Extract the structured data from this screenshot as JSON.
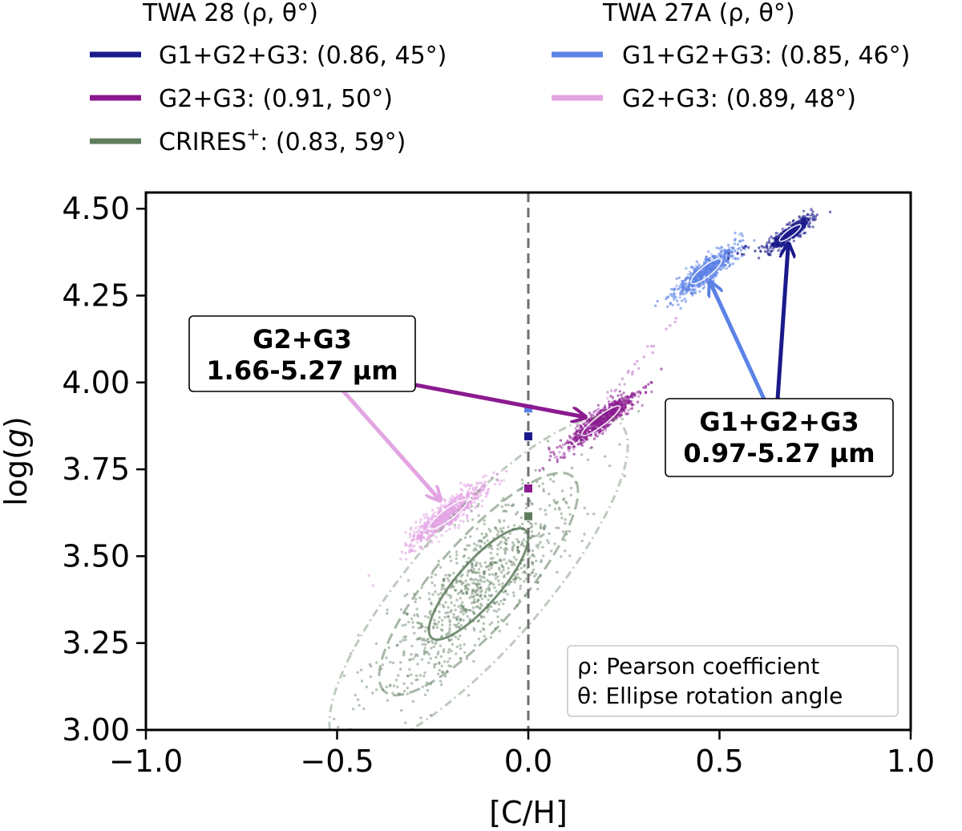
{
  "chart_data": {
    "type": "scatter",
    "xlabel": "[C/H]",
    "ylabel": "log(g)",
    "xlim": [
      -1.0,
      1.0
    ],
    "ylim": [
      3.0,
      4.55
    ],
    "x_ticks": [
      -1.0,
      -0.5,
      0.0,
      0.5,
      1.0
    ],
    "x_tick_labels": [
      "−1.0",
      "−0.5",
      "0.0",
      "0.5",
      "1.0"
    ],
    "y_ticks": [
      3.0,
      3.25,
      3.5,
      3.75,
      4.0,
      4.25,
      4.5
    ],
    "y_tick_labels": [
      "3.00",
      "3.25",
      "3.50",
      "3.75",
      "4.00",
      "4.25",
      "4.50"
    ],
    "reference_line": {
      "x": 0.0,
      "style": "dashed",
      "color": "#6f6f6f"
    },
    "legend": {
      "placement": "above plot",
      "columns": [
        {
          "title": "TWA 28 (ρ, θ°)",
          "entries": [
            {
              "name": "G1+G2+G3",
              "label": "G1+G2+G3: (0.86, 45°)",
              "color": "#1a1a8c"
            },
            {
              "name": "G2+G3",
              "label": "G2+G3: (0.91, 50°)",
              "color": "#8b1a8f"
            },
            {
              "name": "CRIRES+",
              "label_main": "CRIRES",
              "label_sup": "+",
              "label_rest": ": (0.83, 59°)",
              "color": "#5e7d5e"
            }
          ]
        },
        {
          "title": "TWA 27A (ρ, θ°)",
          "entries": [
            {
              "name": "G1+G2+G3",
              "label": "G1+G2+G3: (0.85, 46°)",
              "color": "#5b82e6"
            },
            {
              "name": "G2+G3",
              "label": "G2+G3: (0.89, 48°)",
              "color": "#e2a4e2"
            }
          ]
        }
      ]
    },
    "series": [
      {
        "name": "TWA 28 CRIRES+",
        "color": "#5e7d5e",
        "center": [
          -0.13,
          3.42
        ],
        "sigma": [
          0.13,
          0.16
        ],
        "rho": 0.83,
        "angle_deg": 59,
        "n": 900,
        "dot_alpha": 0.45,
        "contour_alpha": [
          0.85,
          0.55,
          0.4
        ]
      },
      {
        "name": "TWA 27A G2+G3",
        "color": "#e2a4e2",
        "center": [
          -0.21,
          3.62
        ],
        "sigma": [
          0.05,
          0.043
        ],
        "rho": 0.89,
        "angle_deg": 48,
        "n": 650,
        "dot_alpha": 0.6,
        "contour_alpha": [
          0.9,
          0.7,
          0.5
        ]
      },
      {
        "name": "TWA 28 G2+G3",
        "color": "#8b1a8f",
        "center": [
          0.19,
          3.89
        ],
        "sigma": [
          0.05,
          0.043
        ],
        "rho": 0.91,
        "angle_deg": 50,
        "n": 650,
        "dot_alpha": 0.6,
        "contour_alpha": [
          0.9,
          0.7,
          0.5
        ]
      },
      {
        "name": "TWA 27A G1+G2+G3",
        "color": "#5b82e6",
        "center": [
          0.465,
          4.32
        ],
        "sigma": [
          0.04,
          0.036
        ],
        "rho": 0.85,
        "angle_deg": 46,
        "n": 600,
        "dot_alpha": 0.6,
        "contour_alpha": [
          0.9,
          0.7,
          0.5
        ]
      },
      {
        "name": "TWA 28 G1+G2+G3",
        "color": "#1a1a8c",
        "center": [
          0.685,
          4.43
        ],
        "sigma": [
          0.028,
          0.024
        ],
        "rho": 0.86,
        "angle_deg": 45,
        "n": 500,
        "dot_alpha": 0.6,
        "contour_alpha": [
          0.9,
          0.7,
          0.5
        ]
      }
    ],
    "bridges": [
      {
        "from": [
          0.07,
          3.78
        ],
        "to": [
          0.4,
          4.2
        ],
        "color": "#c98bd0",
        "n": 40
      },
      {
        "from": [
          0.52,
          4.36
        ],
        "to": [
          0.66,
          4.42
        ],
        "color": "#1a1a8c",
        "n": 14
      }
    ],
    "zero_markers": [
      {
        "x": 0.0,
        "y": 3.925,
        "color": "#5b82e6"
      },
      {
        "x": 0.0,
        "y": 3.845,
        "color": "#1a1a8c"
      },
      {
        "x": 0.0,
        "y": 3.695,
        "color": "#8b1a8f"
      },
      {
        "x": 0.0,
        "y": 3.615,
        "color": "#5e7d5e"
      }
    ],
    "annotations": [
      {
        "name": "g2g3",
        "lines": [
          "G2+G3",
          "1.66-5.27 µm"
        ],
        "box_center": [
          -0.6,
          4.025
        ],
        "arrows": [
          {
            "from": [
              -0.33,
              4.0
            ],
            "to": [
              0.15,
              3.9
            ],
            "color": "#8b1a8f"
          },
          {
            "from": [
              -0.52,
              4.02
            ],
            "to": [
              -0.23,
              3.66
            ],
            "color": "#e2a4e2"
          }
        ]
      },
      {
        "name": "g1g2g3",
        "lines": [
          "G1+G2+G3",
          "0.97-5.27 µm"
        ],
        "box_center": [
          0.65,
          3.81
        ],
        "arrows": [
          {
            "from": [
              0.65,
              3.92
            ],
            "to": [
              0.68,
              4.4
            ],
            "color": "#1a1a8c"
          },
          {
            "from": [
              0.63,
              3.92
            ],
            "to": [
              0.475,
              4.29
            ],
            "color": "#5b82e6"
          }
        ]
      }
    ],
    "info_box": {
      "lines": [
        "ρ: Pearson coefficient",
        "θ: Ellipse rotation angle"
      ],
      "placement": "bottom-right"
    }
  }
}
